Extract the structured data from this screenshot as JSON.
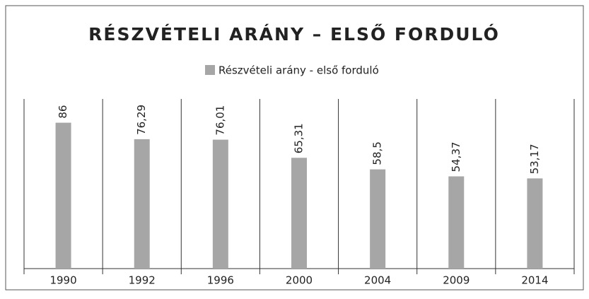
{
  "chart_data": {
    "type": "bar",
    "title": "RÉSZVÉTELI ARÁNY – ELSŐ FORDULÓ",
    "categories": [
      "1990",
      "1992",
      "1996",
      "2000",
      "2004",
      "2009",
      "2014"
    ],
    "series": [
      {
        "name": "Részvételi arány - első forduló",
        "color": "#a6a6a6",
        "values": [
          86,
          76.29,
          76.01,
          65.31,
          58.5,
          54.37,
          53.17
        ],
        "value_labels": [
          "86",
          "76,29",
          "76,01",
          "65,31",
          "58,5",
          "54,37",
          "53,17"
        ]
      }
    ],
    "ylim": [
      0,
      100
    ]
  }
}
